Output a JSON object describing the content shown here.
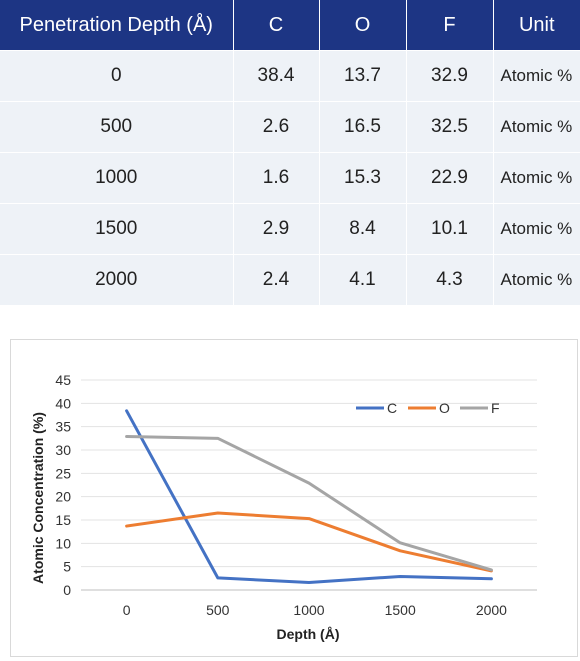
{
  "table": {
    "headers": [
      "Penetration Depth (Å)",
      "C",
      "O",
      "F",
      "Unit"
    ],
    "rows": [
      [
        "0",
        "38.4",
        "13.7",
        "32.9",
        "Atomic %"
      ],
      [
        "500",
        "2.6",
        "16.5",
        "32.5",
        "Atomic %"
      ],
      [
        "1000",
        "1.6",
        "15.3",
        "22.9",
        "Atomic %"
      ],
      [
        "1500",
        "2.9",
        "8.4",
        "10.1",
        "Atomic %"
      ],
      [
        "2000",
        "2.4",
        "4.1",
        "4.3",
        "Atomic %"
      ]
    ]
  },
  "chart_data": {
    "type": "line",
    "title": "",
    "xlabel": "Depth (Å)",
    "ylabel": "Atomic Concentration (%)",
    "categories": [
      "0",
      "500",
      "1000",
      "1500",
      "2000"
    ],
    "ylim": [
      0,
      45
    ],
    "yticks": [
      0,
      5,
      10,
      15,
      20,
      25,
      30,
      35,
      40,
      45
    ],
    "grid": true,
    "legend_position": "top-right",
    "series": [
      {
        "name": "C",
        "color": "#4472c4",
        "values": [
          38.4,
          2.6,
          1.6,
          2.9,
          2.4
        ]
      },
      {
        "name": "O",
        "color": "#ed7d31",
        "values": [
          13.7,
          16.5,
          15.3,
          8.4,
          4.1
        ]
      },
      {
        "name": "F",
        "color": "#a5a5a5",
        "values": [
          32.9,
          32.5,
          22.9,
          10.1,
          4.3
        ]
      }
    ]
  }
}
